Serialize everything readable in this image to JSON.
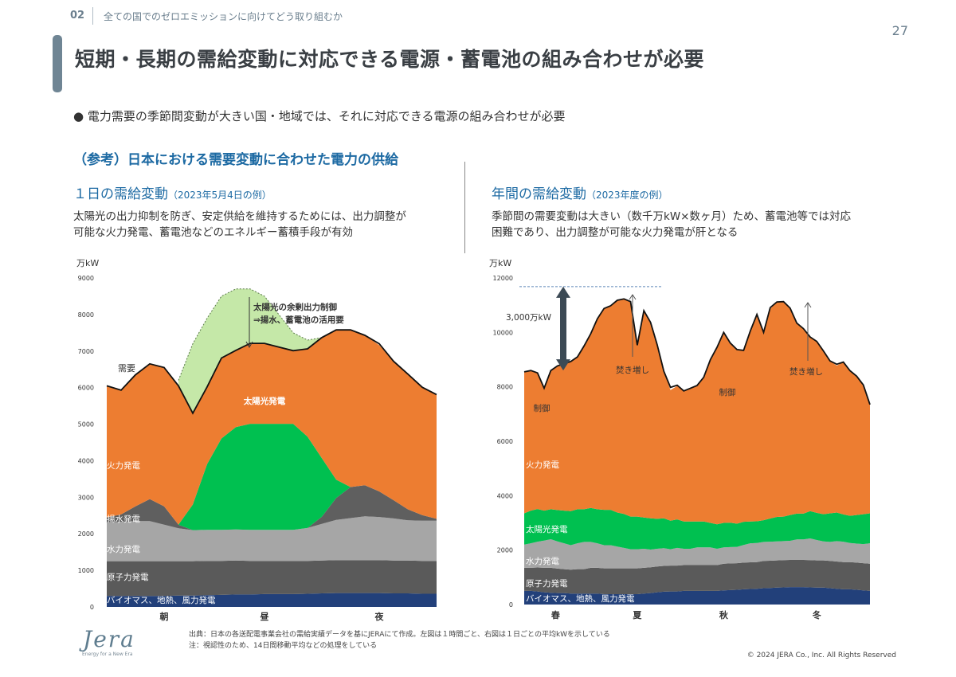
{
  "header": {
    "section_number": "02",
    "section_title": "全ての国でのゼロエミッションに向けてどう取り組むか",
    "page_number": "27"
  },
  "title": "短期・長期の需給変動に対応できる電源・蓄電池の組み合わせが必要",
  "bullet": "● 電力需要の季節間変動が大きい国・地域では、それに対応できる電源の組み合わせが必要",
  "subheading": "（参考）日本における需要変動に合わせた電力の供給",
  "left_panel": {
    "title": "１日の需給変動",
    "title_note": "（2023年5月4日の例）",
    "desc_line1": "太陽光の出力抑制を防ぎ、安定供給を維持するためには、出力調整が",
    "desc_line2": "可能な火力発電、蓄電池などのエネルギー蓄積手段が有効"
  },
  "right_panel": {
    "title": "年間の需給変動",
    "title_note": "（2023年度の例）",
    "desc_line1": "季節間の需要変動は大きい（数千万kW×数ヶ月）ため、蓄電池等では対応",
    "desc_line2": "困難であり、出力調整が可能な火力発電が肝となる"
  },
  "colors": {
    "biomass": "#22407a",
    "nuclear": "#5a5a5a",
    "hydro": "#a6a6a6",
    "pumped": "#5f5f5f",
    "solar": "#00c050",
    "thermal": "#ed7d31",
    "curtail": "#c5e8a8",
    "demand": "#111111"
  },
  "chart_data": [
    {
      "type": "area",
      "stacked": true,
      "title": "１日の需給変動",
      "ylabel": "万kW",
      "ylim": [
        0,
        9000
      ],
      "yticks": [
        "0",
        "1000",
        "2000",
        "3000",
        "4000",
        "5000",
        "6000",
        "7000",
        "8000",
        "9000"
      ],
      "xticklabels": [
        "朝",
        "昼",
        "夜"
      ],
      "x_hours": [
        0,
        1,
        2,
        3,
        4,
        5,
        6,
        7,
        8,
        9,
        10,
        11,
        12,
        13,
        14,
        15,
        16,
        17,
        18,
        19,
        20,
        21,
        22,
        23
      ],
      "series": [
        {
          "name": "バイオマス、地熱、風力発電",
          "key": "biomass",
          "values": [
            300,
            300,
            300,
            300,
            300,
            310,
            310,
            320,
            330,
            340,
            340,
            350,
            350,
            350,
            360,
            370,
            380,
            380,
            380,
            380,
            370,
            370,
            360,
            360
          ]
        },
        {
          "name": "原子力発電",
          "key": "nuclear",
          "values": [
            950,
            950,
            950,
            950,
            950,
            940,
            940,
            940,
            930,
            930,
            920,
            910,
            910,
            910,
            900,
            900,
            900,
            900,
            900,
            900,
            900,
            900,
            900,
            900
          ]
        },
        {
          "name": "水力発電",
          "key": "hydro",
          "values": [
            1050,
            1080,
            1100,
            1100,
            1000,
            900,
            850,
            850,
            850,
            850,
            850,
            850,
            850,
            850,
            900,
            1000,
            1100,
            1150,
            1200,
            1180,
            1150,
            1100,
            1100,
            1100
          ]
        },
        {
          "name": "揚水発電",
          "key": "pumped",
          "values": [
            150,
            200,
            400,
            600,
            500,
            100,
            0,
            0,
            0,
            0,
            0,
            0,
            0,
            0,
            0,
            200,
            600,
            850,
            850,
            700,
            500,
            300,
            150,
            50
          ]
        },
        {
          "name": "太陽光発電",
          "key": "solar",
          "values": [
            0,
            0,
            0,
            0,
            0,
            0,
            700,
            1800,
            2500,
            2800,
            2900,
            2900,
            2900,
            2900,
            2500,
            1600,
            500,
            0,
            0,
            0,
            0,
            0,
            0,
            0
          ]
        },
        {
          "name": "火力発電",
          "key": "thermal",
          "values": [
            3600,
            3400,
            3600,
            3700,
            3800,
            3800,
            2500,
            2100,
            2200,
            2100,
            2200,
            2200,
            2100,
            2000,
            2400,
            3300,
            4100,
            4300,
            4100,
            4000,
            3800,
            3700,
            3500,
            3400
          ]
        }
      ],
      "demand": {
        "name": "需要",
        "values": [
          6050,
          5930,
          6350,
          6650,
          6550,
          6050,
          5300,
          6020,
          6810,
          7020,
          7210,
          7210,
          7110,
          7010,
          7060,
          7370,
          7580,
          7580,
          7430,
          7200,
          6720,
          6370,
          6010,
          5810
        ]
      },
      "curtailment_top": [
        null,
        null,
        null,
        null,
        null,
        6200,
        7200,
        7900,
        8500,
        8700,
        8700,
        8500,
        8000,
        7500,
        7300,
        7370,
        null,
        null,
        null,
        null,
        null,
        null,
        null,
        null
      ],
      "annotations": {
        "demand_label": "需要",
        "curtail_line1": "太陽光の余剰出力制御",
        "curtail_line2": "⇒揚水、蓄電池の活用要",
        "series_labels": {
          "biomass": "バイオマス、地熱、風力発電",
          "nuclear": "原子力発電",
          "hydro": "水力発電",
          "pumped": "揚水発電",
          "solar": "太陽光発電",
          "thermal": "火力発電"
        }
      }
    },
    {
      "type": "area",
      "stacked": true,
      "title": "年間の需給変動",
      "ylabel": "万kW",
      "ylim": [
        0,
        12000
      ],
      "yticks": [
        "0",
        "2000",
        "4000",
        "6000",
        "8000",
        "10000",
        "12000"
      ],
      "xticklabels": [
        "春",
        "夏",
        "秋",
        "冬"
      ],
      "x_weeks": [
        0,
        1,
        2,
        3,
        4,
        5,
        6,
        7,
        8,
        9,
        10,
        11,
        12,
        13,
        14,
        15,
        16,
        17,
        18,
        19,
        20,
        21,
        22,
        23,
        24,
        25,
        26,
        27,
        28,
        29,
        30,
        31,
        32,
        33,
        34,
        35,
        36,
        37,
        38,
        39,
        40,
        41,
        42,
        43,
        44,
        45,
        46,
        47,
        48,
        49,
        50,
        51,
        52
      ],
      "series": [
        {
          "name": "バイオマス、地熱、風力発電",
          "key": "biomass",
          "values": [
            500,
            500,
            480,
            450,
            430,
            420,
            420,
            400,
            400,
            400,
            400,
            400,
            380,
            380,
            380,
            380,
            380,
            380,
            400,
            420,
            450,
            470,
            480,
            480,
            500,
            500,
            500,
            500,
            500,
            500,
            520,
            530,
            540,
            560,
            570,
            580,
            600,
            610,
            620,
            630,
            640,
            640,
            640,
            630,
            620,
            620,
            600,
            580,
            560,
            560,
            540,
            520,
            500
          ]
        },
        {
          "name": "原子力発電",
          "key": "nuclear",
          "values": [
            850,
            850,
            880,
            900,
            920,
            900,
            880,
            880,
            900,
            900,
            950,
            950,
            950,
            950,
            950,
            950,
            950,
            950,
            950,
            950,
            950,
            950,
            950,
            950,
            950,
            950,
            950,
            950,
            950,
            950,
            980,
            980,
            980,
            980,
            980,
            980,
            1000,
            1000,
            1000,
            1000,
            1000,
            1000,
            1000,
            1000,
            1000,
            1000,
            1000,
            1000,
            1000,
            1000,
            1000,
            1000,
            1000
          ]
        },
        {
          "name": "水力発電",
          "key": "hydro",
          "values": [
            850,
            900,
            950,
            1000,
            1050,
            1000,
            950,
            900,
            950,
            1000,
            950,
            900,
            850,
            850,
            800,
            750,
            700,
            700,
            700,
            650,
            650,
            650,
            600,
            650,
            600,
            600,
            650,
            650,
            650,
            600,
            600,
            600,
            600,
            650,
            700,
            700,
            700,
            700,
            700,
            700,
            700,
            750,
            750,
            800,
            750,
            700,
            700,
            750,
            750,
            700,
            700,
            700,
            750
          ]
        },
        {
          "name": "太陽光発電",
          "key": "solar",
          "values": [
            1150,
            1200,
            1200,
            1100,
            1100,
            1150,
            1200,
            1250,
            1250,
            1200,
            1250,
            1250,
            1300,
            1300,
            1250,
            1250,
            1200,
            1200,
            1150,
            1150,
            1100,
            1100,
            1050,
            1050,
            1000,
            1000,
            950,
            950,
            900,
            900,
            900,
            900,
            850,
            850,
            800,
            800,
            800,
            850,
            900,
            900,
            950,
            950,
            950,
            1000,
            1000,
            1000,
            1050,
            1050,
            1000,
            1000,
            1050,
            1100,
            1100
          ]
        },
        {
          "name": "火力発電",
          "key": "thermal",
          "values": [
            5200,
            5150,
            5000,
            4500,
            5100,
            5300,
            5400,
            5500,
            5600,
            6000,
            6400,
            7000,
            7400,
            7500,
            7800,
            7900,
            7900,
            6300,
            7600,
            7200,
            6400,
            5400,
            4800,
            4900,
            4800,
            4900,
            5000,
            5300,
            6000,
            6500,
            7000,
            6600,
            6400,
            6300,
            7000,
            7600,
            6900,
            7700,
            7900,
            7900,
            7600,
            7000,
            6800,
            6400,
            6300,
            6000,
            5600,
            5400,
            5600,
            5300,
            5100,
            4700,
            4000
          ]
        }
      ],
      "demand": {
        "name": "需要",
        "values": [
          8550,
          8600,
          8510,
          7950,
          8600,
          8770,
          8850,
          8930,
          9100,
          9500,
          9950,
          10500,
          10880,
          10980,
          11180,
          11230,
          11130,
          9530,
          10800,
          10370,
          9550,
          8570,
          7980,
          8060,
          7850,
          7950,
          8050,
          8350,
          9000,
          9450,
          10000,
          9610,
          9370,
          9340,
          10050,
          10660,
          10000,
          10910,
          11120,
          11130,
          10890,
          10340,
          10140,
          9830,
          9670,
          9320,
          8950,
          8830,
          8910,
          8590,
          8390,
          8070,
          7350
        ]
      },
      "annotations": {
        "gap_label": "3,000万kW",
        "up_label_1": "焚き増し",
        "up_label_2": "焚き増し",
        "ctrl_label_1": "制御",
        "ctrl_label_2": "制御",
        "series_labels": {
          "biomass": "バイオマス、地熱、風力発電",
          "nuclear": "原子力発電",
          "hydro": "水力発電",
          "solar": "太陽光発電",
          "thermal": "火力発電"
        }
      }
    }
  ],
  "footer": {
    "source": "出典：日本の各送配電事業会社の需給実績データを基にJERAにて作成。左図は１時間ごと、右図は１日ごとの平均kWを示している",
    "note": "注：視認性のため、14日間移動平均などの処理をしている",
    "copyright": "© 2024 JERA Co., Inc. All Rights Reserved",
    "logo": "Jera",
    "tagline": "Energy for a New Era"
  }
}
